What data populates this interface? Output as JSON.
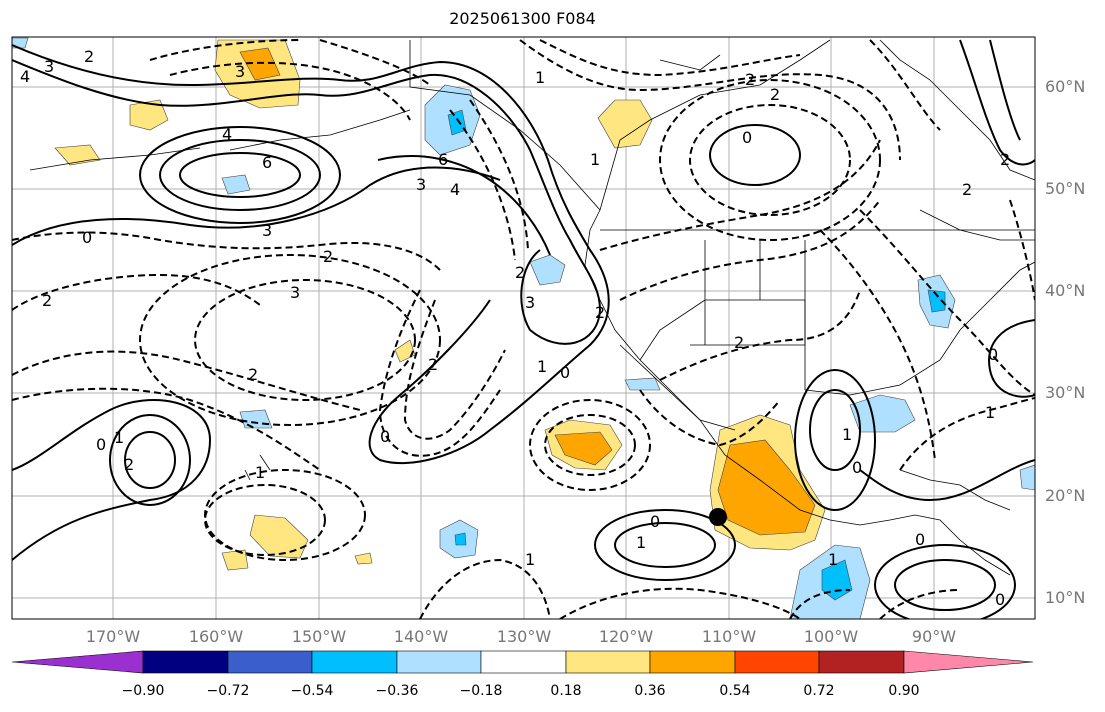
{
  "title": "2025061300 F084",
  "map": {
    "lat_labels": [
      "60°N",
      "50°N",
      "40°N",
      "30°N",
      "20°N",
      "10°N"
    ],
    "lon_labels": [
      "170°W",
      "160°W",
      "150°W",
      "140°W",
      "130°W",
      "120°W",
      "110°W",
      "100°W",
      "90°W"
    ],
    "contour_labels": [
      "4",
      "3",
      "2",
      "3",
      "6",
      "4",
      "3",
      "0",
      "2",
      "2",
      "3",
      "2",
      "0",
      "1",
      "2",
      "2",
      "1",
      "1",
      "1",
      "2",
      "2",
      "6",
      "4",
      "3",
      "2",
      "3",
      "1",
      "2",
      "2",
      "0",
      "0",
      "1",
      "0",
      "1",
      "1",
      "2",
      "2",
      "0",
      "0",
      "0",
      "1",
      "0",
      "0",
      "1"
    ],
    "marker": "filled circle"
  },
  "colorbar": {
    "levels": [
      "−0.90",
      "−0.72",
      "−0.54",
      "−0.36",
      "−0.18",
      "0.18",
      "0.36",
      "0.54",
      "0.72",
      "0.90"
    ],
    "colors": [
      "#9b30d0",
      "#000080",
      "#3a5fcd",
      "#00bfff",
      "#afe0ff",
      "#ffffff",
      "#ffe680",
      "#ffa500",
      "#ff4500",
      "#b22222",
      "#ff88aa"
    ]
  }
}
